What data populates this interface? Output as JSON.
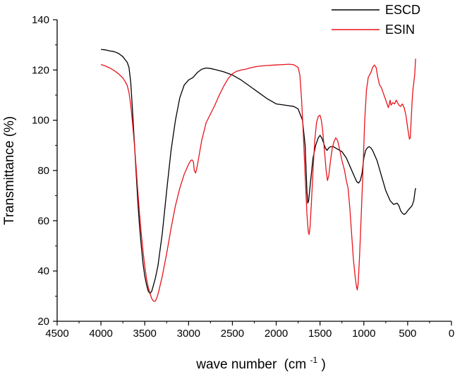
{
  "chart_data": {
    "type": "line",
    "xlabel": "wave number",
    "xlabel_unit_base": "(cm",
    "xlabel_unit_exp": "-1",
    "xlabel_unit_close": ")",
    "ylabel": "Transmittance  (%)",
    "xlim": [
      4500,
      0
    ],
    "ylim": [
      20,
      140
    ],
    "x_ticks": [
      4500,
      4000,
      3500,
      3000,
      2500,
      2000,
      1500,
      1000,
      500,
      0
    ],
    "y_ticks": [
      20,
      40,
      60,
      80,
      100,
      120,
      140
    ],
    "legend_position": "top-right",
    "grid": false,
    "series": [
      {
        "name": "ESCD",
        "color": "#000000",
        "points": [
          [
            4000,
            128.2
          ],
          [
            3950,
            128.0
          ],
          [
            3900,
            127.6
          ],
          [
            3850,
            127.3
          ],
          [
            3800,
            126.6
          ],
          [
            3750,
            125.3
          ],
          [
            3720,
            123.9
          ],
          [
            3700,
            123.0
          ],
          [
            3680,
            121.0
          ],
          [
            3660,
            115.0
          ],
          [
            3640,
            104.0
          ],
          [
            3620,
            92.0
          ],
          [
            3600,
            80.0
          ],
          [
            3580,
            68.0
          ],
          [
            3560,
            58.0
          ],
          [
            3540,
            50.0
          ],
          [
            3520,
            43.0
          ],
          [
            3500,
            38.0
          ],
          [
            3480,
            34.5
          ],
          [
            3460,
            32.0
          ],
          [
            3440,
            31.0
          ],
          [
            3420,
            32.0
          ],
          [
            3400,
            34.5
          ],
          [
            3380,
            37.0
          ],
          [
            3350,
            42.0
          ],
          [
            3300,
            55.0
          ],
          [
            3250,
            72.0
          ],
          [
            3200,
            88.0
          ],
          [
            3150,
            100.0
          ],
          [
            3100,
            109.0
          ],
          [
            3050,
            114.0
          ],
          [
            3000,
            116.0
          ],
          [
            2950,
            117.0
          ],
          [
            2900,
            119.0
          ],
          [
            2850,
            120.3
          ],
          [
            2800,
            120.8
          ],
          [
            2750,
            120.6
          ],
          [
            2700,
            120.2
          ],
          [
            2600,
            119.3
          ],
          [
            2500,
            118.0
          ],
          [
            2400,
            116.0
          ],
          [
            2300,
            113.5
          ],
          [
            2200,
            111.0
          ],
          [
            2100,
            108.5
          ],
          [
            2000,
            106.5
          ],
          [
            1900,
            106.0
          ],
          [
            1800,
            105.5
          ],
          [
            1750,
            104.5
          ],
          [
            1700,
            100.0
          ],
          [
            1670,
            90.0
          ],
          [
            1650,
            72.0
          ],
          [
            1640,
            67.0
          ],
          [
            1630,
            68.0
          ],
          [
            1610,
            75.0
          ],
          [
            1580,
            85.0
          ],
          [
            1550,
            90.0
          ],
          [
            1520,
            93.0
          ],
          [
            1500,
            94.0
          ],
          [
            1480,
            93.0
          ],
          [
            1460,
            91.0
          ],
          [
            1440,
            89.0
          ],
          [
            1420,
            88.0
          ],
          [
            1400,
            89.0
          ],
          [
            1380,
            89.5
          ],
          [
            1350,
            89.5
          ],
          [
            1300,
            88.5
          ],
          [
            1250,
            87.5
          ],
          [
            1200,
            85.0
          ],
          [
            1150,
            81.0
          ],
          [
            1100,
            77.0
          ],
          [
            1080,
            75.5
          ],
          [
            1060,
            75.0
          ],
          [
            1040,
            76.0
          ],
          [
            1020,
            79.0
          ],
          [
            1000,
            85.0
          ],
          [
            980,
            88.0
          ],
          [
            960,
            89.0
          ],
          [
            940,
            89.5
          ],
          [
            920,
            89.0
          ],
          [
            900,
            88.0
          ],
          [
            850,
            84.0
          ],
          [
            800,
            78.0
          ],
          [
            750,
            72.0
          ],
          [
            700,
            68.0
          ],
          [
            660,
            66.5
          ],
          [
            620,
            67.0
          ],
          [
            600,
            66.0
          ],
          [
            580,
            64.0
          ],
          [
            560,
            63.0
          ],
          [
            540,
            62.5
          ],
          [
            520,
            63.0
          ],
          [
            500,
            64.0
          ],
          [
            450,
            66.0
          ],
          [
            430,
            68.0
          ],
          [
            415,
            72.0
          ],
          [
            408,
            73.0
          ]
        ]
      },
      {
        "name": "ESIN",
        "color": "#e8141c",
        "points": [
          [
            4000,
            122.2
          ],
          [
            3950,
            121.6
          ],
          [
            3900,
            120.8
          ],
          [
            3850,
            119.8
          ],
          [
            3800,
            118.5
          ],
          [
            3750,
            116.8
          ],
          [
            3720,
            115.2
          ],
          [
            3700,
            113.8
          ],
          [
            3680,
            111.0
          ],
          [
            3660,
            106.0
          ],
          [
            3640,
            99.0
          ],
          [
            3620,
            91.0
          ],
          [
            3600,
            82.0
          ],
          [
            3580,
            72.0
          ],
          [
            3560,
            63.0
          ],
          [
            3540,
            55.0
          ],
          [
            3520,
            48.0
          ],
          [
            3500,
            42.0
          ],
          [
            3480,
            37.0
          ],
          [
            3460,
            33.5
          ],
          [
            3440,
            31.0
          ],
          [
            3420,
            29.0
          ],
          [
            3400,
            28.0
          ],
          [
            3380,
            28.0
          ],
          [
            3360,
            29.5
          ],
          [
            3340,
            32.0
          ],
          [
            3300,
            38.0
          ],
          [
            3250,
            47.0
          ],
          [
            3200,
            57.0
          ],
          [
            3150,
            66.0
          ],
          [
            3100,
            73.0
          ],
          [
            3050,
            78.5
          ],
          [
            3000,
            82.5
          ],
          [
            2975,
            84.0
          ],
          [
            2960,
            84.2
          ],
          [
            2945,
            83.5
          ],
          [
            2935,
            80.0
          ],
          [
            2920,
            79.0
          ],
          [
            2905,
            81.0
          ],
          [
            2880,
            86.0
          ],
          [
            2850,
            92.0
          ],
          [
            2800,
            99.0
          ],
          [
            2750,
            102.5
          ],
          [
            2700,
            106.0
          ],
          [
            2650,
            110.0
          ],
          [
            2600,
            113.5
          ],
          [
            2550,
            116.5
          ],
          [
            2500,
            118.5
          ],
          [
            2450,
            119.5
          ],
          [
            2400,
            120.0
          ],
          [
            2350,
            120.3
          ],
          [
            2300,
            120.8
          ],
          [
            2250,
            121.2
          ],
          [
            2200,
            121.5
          ],
          [
            2100,
            121.8
          ],
          [
            2000,
            122.0
          ],
          [
            1900,
            122.2
          ],
          [
            1850,
            122.3
          ],
          [
            1800,
            122.1
          ],
          [
            1750,
            121.0
          ],
          [
            1730,
            118.0
          ],
          [
            1710,
            108.0
          ],
          [
            1690,
            94.0
          ],
          [
            1670,
            78.0
          ],
          [
            1650,
            63.0
          ],
          [
            1635,
            56.0
          ],
          [
            1625,
            54.5
          ],
          [
            1615,
            57.0
          ],
          [
            1600,
            66.0
          ],
          [
            1580,
            80.0
          ],
          [
            1560,
            92.0
          ],
          [
            1540,
            99.0
          ],
          [
            1520,
            101.5
          ],
          [
            1500,
            102.0
          ],
          [
            1485,
            100.0
          ],
          [
            1470,
            96.0
          ],
          [
            1450,
            88.0
          ],
          [
            1430,
            80.0
          ],
          [
            1415,
            76.0
          ],
          [
            1400,
            78.0
          ],
          [
            1380,
            84.0
          ],
          [
            1360,
            89.0
          ],
          [
            1340,
            91.5
          ],
          [
            1320,
            93.0
          ],
          [
            1300,
            92.0
          ],
          [
            1280,
            89.0
          ],
          [
            1250,
            84.0
          ],
          [
            1220,
            80.0
          ],
          [
            1200,
            76.0
          ],
          [
            1180,
            73.0
          ],
          [
            1160,
            65.0
          ],
          [
            1140,
            55.0
          ],
          [
            1120,
            45.0
          ],
          [
            1100,
            38.0
          ],
          [
            1085,
            34.0
          ],
          [
            1075,
            32.5
          ],
          [
            1065,
            35.0
          ],
          [
            1050,
            45.0
          ],
          [
            1030,
            62.0
          ],
          [
            1010,
            80.0
          ],
          [
            990,
            100.0
          ],
          [
            970,
            112.0
          ],
          [
            950,
            117.0
          ],
          [
            920,
            119.0
          ],
          [
            900,
            121.0
          ],
          [
            880,
            122.0
          ],
          [
            860,
            121.0
          ],
          [
            840,
            117.0
          ],
          [
            820,
            114.0
          ],
          [
            800,
            113.0
          ],
          [
            780,
            111.0
          ],
          [
            760,
            109.0
          ],
          [
            740,
            107.0
          ],
          [
            720,
            105.0
          ],
          [
            700,
            108.0
          ],
          [
            690,
            106.0
          ],
          [
            670,
            107.0
          ],
          [
            650,
            106.5
          ],
          [
            630,
            108.0
          ],
          [
            600,
            106.0
          ],
          [
            580,
            105.5
          ],
          [
            560,
            106.5
          ],
          [
            540,
            105.0
          ],
          [
            520,
            102.0
          ],
          [
            500,
            97.0
          ],
          [
            480,
            92.5
          ],
          [
            470,
            93.0
          ],
          [
            460,
            100.0
          ],
          [
            450,
            107.0
          ],
          [
            440,
            112.0
          ],
          [
            430,
            115.0
          ],
          [
            420,
            118.0
          ],
          [
            415,
            121.0
          ],
          [
            410,
            124.0
          ],
          [
            408,
            124.5
          ]
        ]
      }
    ]
  }
}
